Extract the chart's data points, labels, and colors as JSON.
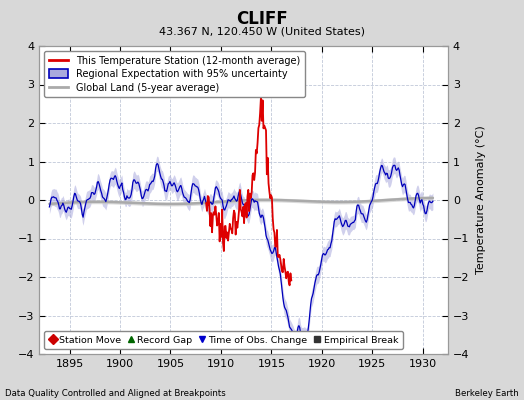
{
  "title": "CLIFF",
  "subtitle": "43.367 N, 120.450 W (United States)",
  "ylabel": "Temperature Anomaly (°C)",
  "footer_left": "Data Quality Controlled and Aligned at Breakpoints",
  "footer_right": "Berkeley Earth",
  "xlim": [
    1892.0,
    1932.5
  ],
  "ylim": [
    -4,
    4
  ],
  "xticks": [
    1895,
    1900,
    1905,
    1910,
    1915,
    1920,
    1925,
    1930
  ],
  "yticks": [
    -4,
    -3,
    -2,
    -1,
    0,
    1,
    2,
    3,
    4
  ],
  "bg_color": "#d8d8d8",
  "plot_bg_color": "#ffffff",
  "grid_color": "#c0c8d8",
  "red_line_color": "#dd0000",
  "blue_line_color": "#0000bb",
  "blue_fill_color": "#aaaadd",
  "gray_line_color": "#aaaaaa",
  "legend_entries": [
    "This Temperature Station (12-month average)",
    "Regional Expectation with 95% uncertainty",
    "Global Land (5-year average)"
  ],
  "bottom_legend_entries": [
    {
      "marker": "D",
      "color": "#cc0000",
      "label": "Station Move"
    },
    {
      "marker": "^",
      "color": "#006600",
      "label": "Record Gap"
    },
    {
      "marker": "v",
      "color": "#0000cc",
      "label": "Time of Obs. Change"
    },
    {
      "marker": "s",
      "color": "#333333",
      "label": "Empirical Break"
    }
  ],
  "seed": 17
}
